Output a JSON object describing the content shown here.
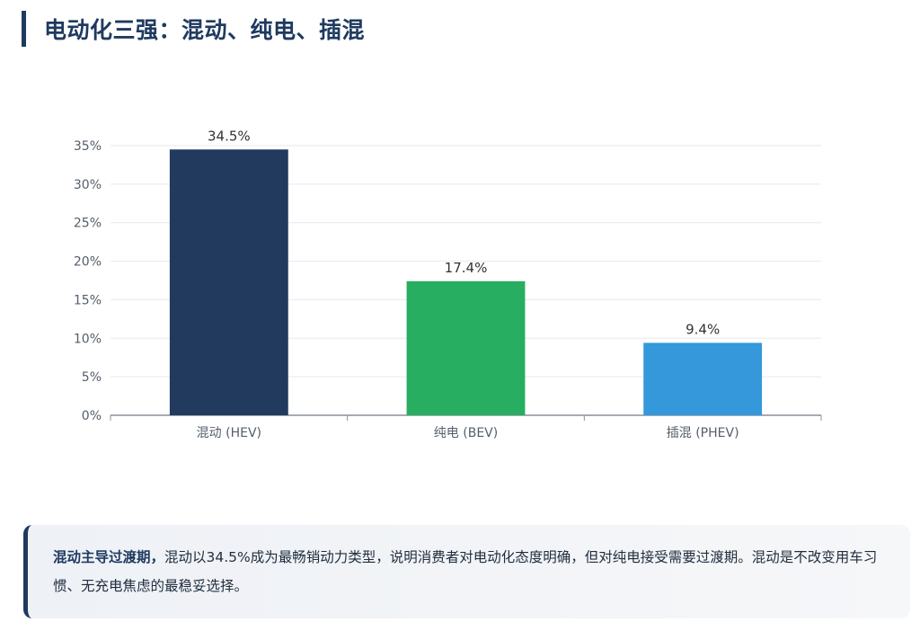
{
  "header": {
    "title": "电动化三强：混动、纯电、插混"
  },
  "colors": {
    "accent": "#1f3a5f",
    "hev": "#213a5e",
    "bev": "#27ae60",
    "phev": "#3498db",
    "grid": "#e6e9ee",
    "axis": "#8a8f99"
  },
  "chart_data": {
    "type": "bar",
    "title": "",
    "xlabel": "",
    "ylabel": "",
    "categories": [
      "混动 (HEV)",
      "纯电 (BEV)",
      "插混 (PHEV)"
    ],
    "values": [
      34.5,
      17.4,
      9.4
    ],
    "data_labels": [
      "34.5%",
      "17.4%",
      "9.4%"
    ],
    "colors": [
      "#213a5e",
      "#27ae60",
      "#3498db"
    ],
    "ylim": [
      0,
      35
    ],
    "yticks": [
      0,
      5,
      10,
      15,
      20,
      25,
      30,
      35
    ],
    "ytick_labels": [
      "0%",
      "5%",
      "10%",
      "15%",
      "20%",
      "25%",
      "30%",
      "35%"
    ],
    "grid": true,
    "legend": "none"
  },
  "insight": {
    "strong": "混动主导过渡期，",
    "text": "混动以34.5%成为最畅销动力类型，说明消费者对电动化态度明确，但对纯电接受需要过渡期。混动是不改变用车习惯、无充电焦虑的最稳妥选择。"
  }
}
